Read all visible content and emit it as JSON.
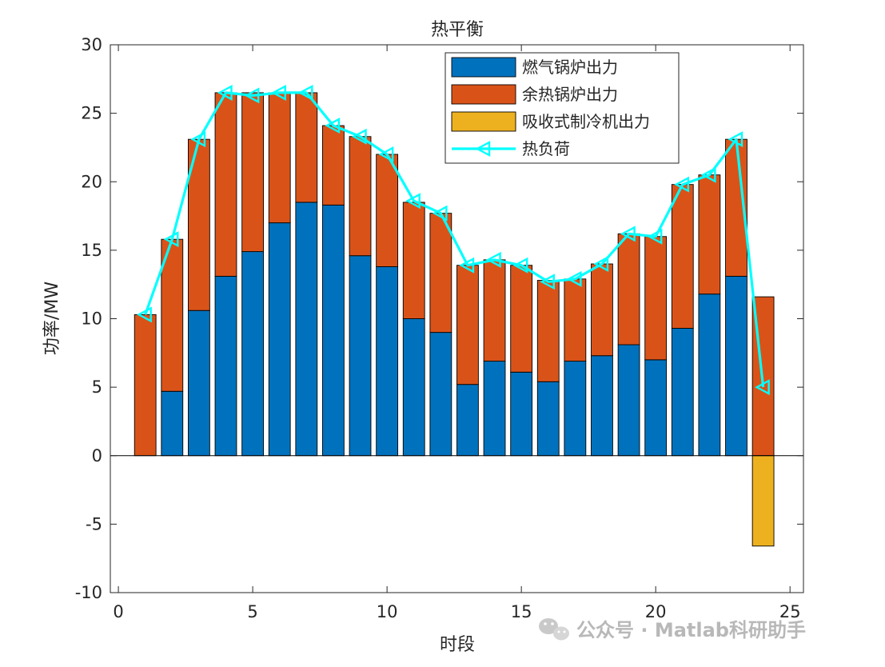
{
  "chart_data": {
    "type": "bar",
    "title": "热平衡",
    "xlabel": "时段",
    "ylabel": "功率/MW",
    "xlim": [
      -0.3,
      25.5
    ],
    "ylim": [
      -10,
      30
    ],
    "xticks": [
      0,
      5,
      10,
      15,
      20,
      25
    ],
    "xtick_labels": [
      "0",
      "5",
      "10",
      "15",
      "20",
      "25"
    ],
    "yticks": [
      -10,
      -5,
      0,
      5,
      10,
      15,
      20,
      25,
      30
    ],
    "ytick_labels": [
      "-10",
      "-5",
      "0",
      "5",
      "10",
      "15",
      "20",
      "25",
      "30"
    ],
    "grid": false,
    "stacked": true,
    "legend_position": "top-right",
    "x": [
      1,
      2,
      3,
      4,
      5,
      6,
      7,
      8,
      9,
      10,
      11,
      12,
      13,
      14,
      15,
      16,
      17,
      18,
      19,
      20,
      21,
      22,
      23,
      24
    ],
    "series": [
      {
        "name": "燃气锅炉出力",
        "kind": "bar",
        "color": "#0072BD",
        "values": [
          0,
          4.7,
          10.6,
          13.1,
          14.9,
          17.0,
          18.5,
          18.3,
          14.6,
          13.8,
          10.0,
          9.0,
          5.2,
          6.9,
          6.1,
          5.4,
          6.9,
          7.3,
          8.1,
          7.0,
          9.3,
          11.8,
          13.1,
          0
        ]
      },
      {
        "name": "余热锅炉出力",
        "kind": "bar",
        "color": "#D95319",
        "values": [
          10.3,
          11.1,
          12.5,
          13.4,
          11.6,
          9.5,
          8.0,
          5.8,
          8.7,
          8.2,
          8.5,
          8.7,
          8.7,
          7.4,
          7.8,
          7.4,
          6.0,
          6.7,
          8.1,
          9.0,
          10.5,
          8.7,
          10.0,
          11.6
        ]
      },
      {
        "name": "吸收式制冷机出力",
        "kind": "bar",
        "color": "#EDB120",
        "values": [
          0,
          0,
          0,
          0,
          0,
          0,
          0,
          0,
          0,
          0,
          0,
          0,
          0,
          0,
          0,
          0,
          0,
          0,
          0,
          0,
          0,
          0,
          0,
          -6.6
        ]
      },
      {
        "name": "热负荷",
        "kind": "line",
        "marker": "triangle-left",
        "color": "#00FFFF",
        "values": [
          10.3,
          15.8,
          23.1,
          26.5,
          26.3,
          26.5,
          26.5,
          24.1,
          23.3,
          22.0,
          18.6,
          17.7,
          13.9,
          14.3,
          13.9,
          12.7,
          12.9,
          14.0,
          16.2,
          16.0,
          19.8,
          20.5,
          23.1,
          5.0
        ]
      }
    ]
  },
  "watermark": {
    "text": "公众号 · Matlab科研助手",
    "icon": "wechat-icon"
  }
}
